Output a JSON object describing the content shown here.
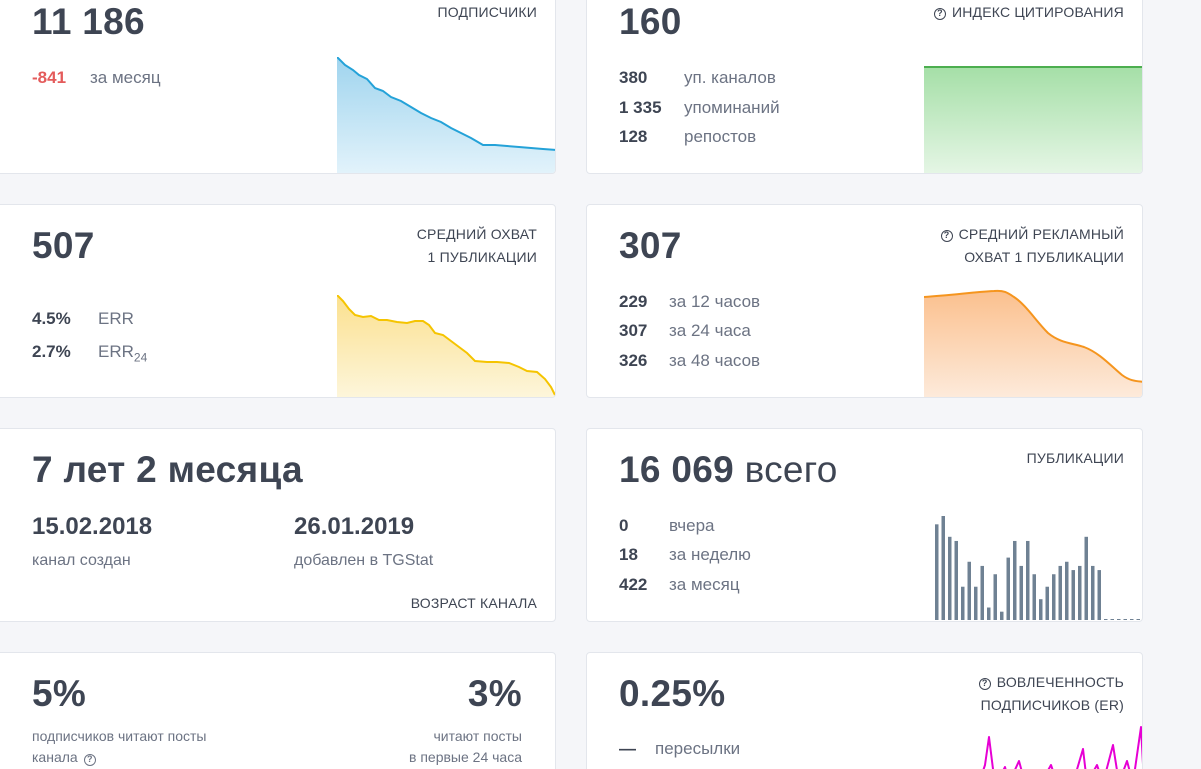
{
  "subscribers": {
    "value": "11 186",
    "label": "ПОДПИСЧИКИ",
    "delta": "-841",
    "delta_label": "за месяц",
    "color": "#24a2d8"
  },
  "citation": {
    "value": "160",
    "label": "ИНДЕКС ЦИТИРОВАНИЯ",
    "rows": [
      {
        "n": "380",
        "t": "уп. каналов"
      },
      {
        "n": "1 335",
        "t": "упоминаний"
      },
      {
        "n": "128",
        "t": "репостов"
      }
    ],
    "color": "#4cae4f"
  },
  "reach": {
    "value": "507",
    "label_line1": "СРЕДНИЙ ОХВАТ",
    "label_line2": "1 ПУБЛИКАЦИИ",
    "err_value": "4.5%",
    "err_label": "ERR",
    "err24_value": "2.7%",
    "err24_label": "ERR",
    "err24_sub": "24",
    "color": "#f5c400"
  },
  "ad_reach": {
    "value": "307",
    "label_line1": "СРЕДНИЙ РЕКЛАМНЫЙ",
    "label_line2": "ОХВАТ 1 ПУБЛИКАЦИИ",
    "rows": [
      {
        "n": "229",
        "t": "за 12 часов"
      },
      {
        "n": "307",
        "t": "за 24 часа"
      },
      {
        "n": "326",
        "t": "за 48 часов"
      }
    ],
    "color": "#f5951e"
  },
  "age": {
    "value": "7 лет 2 месяца",
    "created_date": "15.02.2018",
    "created_label": "канал создан",
    "added_date": "26.01.2019",
    "added_label": "добавлен в TGStat",
    "label": "ВОЗРАСТ КАНАЛА"
  },
  "publications": {
    "value": "16 069",
    "value_suffix": "всего",
    "label": "ПУБЛИКАЦИИ",
    "rows": [
      {
        "n": "0",
        "t": "вчера"
      },
      {
        "n": "18",
        "t": "за неделю"
      },
      {
        "n": "422",
        "t": "за месяц"
      }
    ],
    "bar_color": "#6f8193",
    "bars": [
      23,
      25,
      20,
      19,
      8,
      14,
      8,
      13,
      3,
      11,
      2,
      15,
      19,
      13,
      19,
      11,
      5,
      8,
      11,
      13,
      14,
      12,
      13,
      20,
      13,
      12,
      0,
      0,
      0,
      0,
      0,
      0,
      0
    ]
  },
  "readers": {
    "pct_all": "5%",
    "pct_all_label_line1": "подписчиков читают посты",
    "pct_all_label_line2": "канала",
    "pct_24": "3%",
    "pct_24_label_line1": "читают посты",
    "pct_24_label_line2": "в первые 24 часа"
  },
  "engagement": {
    "value": "0.25%",
    "label_line1": "ВОВЛЕЧЕННОСТЬ",
    "label_line2": "ПОДПИСЧИКОВ (ER)",
    "forwards_value": "—",
    "forwards_label": "пересылки",
    "color": "#e600d4"
  }
}
